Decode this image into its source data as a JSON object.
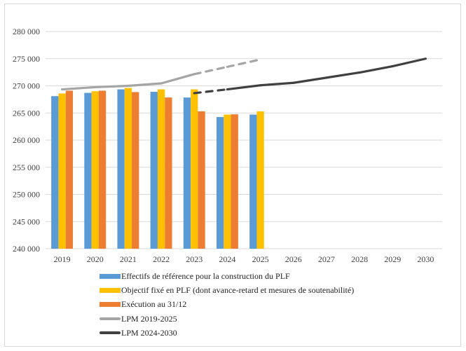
{
  "chart_data": {
    "type": "bar",
    "title": "",
    "xlabel": "",
    "ylabel": "",
    "ylim": [
      240000,
      280000
    ],
    "yticks": [
      240000,
      245000,
      250000,
      255000,
      260000,
      265000,
      270000,
      275000,
      280000
    ],
    "ytick_labels": [
      "240 000",
      "245 000",
      "250 000",
      "255 000",
      "260 000",
      "265 000",
      "270 000",
      "275 000",
      "280 000"
    ],
    "grid": true,
    "categories": [
      "2019",
      "2020",
      "2021",
      "2022",
      "2023",
      "2024",
      "2025",
      "2026",
      "2027",
      "2028",
      "2029",
      "2030"
    ],
    "series": [
      {
        "name": "Effectifs de référence pour la construction du PLF",
        "kind": "bar",
        "color": "#5B9BD5",
        "values": [
          268100,
          268700,
          269350,
          268900,
          267850,
          264250,
          264700,
          null,
          null,
          null,
          null,
          null
        ]
      },
      {
        "name": "Objectif fixé en PLF (dont avance-retard et mesures de soutenabilité)",
        "kind": "bar",
        "color": "#FFC000",
        "values": [
          268600,
          269000,
          269600,
          269350,
          269350,
          264700,
          265300,
          null,
          null,
          null,
          null,
          null
        ]
      },
      {
        "name": "Exécution au 31/12",
        "kind": "bar",
        "color": "#ED7D31",
        "values": [
          269100,
          269100,
          268850,
          267850,
          265300,
          264750,
          null,
          null,
          null,
          null,
          null,
          null
        ]
      },
      {
        "name": "LPM 2019-2025",
        "kind": "line",
        "color": "#A5A5A5",
        "dashed_from": "2023",
        "values": [
          269350,
          269750,
          270000,
          270450,
          272150,
          273500,
          274850,
          null,
          null,
          null,
          null,
          null
        ]
      },
      {
        "name": "LPM 2024-2030",
        "kind": "line",
        "color": "#404040",
        "dashed_until": "2024",
        "values": [
          null,
          null,
          null,
          null,
          268650,
          269350,
          270100,
          270550,
          271500,
          272450,
          273600,
          275000
        ]
      }
    ],
    "legend_position": "bottom"
  }
}
